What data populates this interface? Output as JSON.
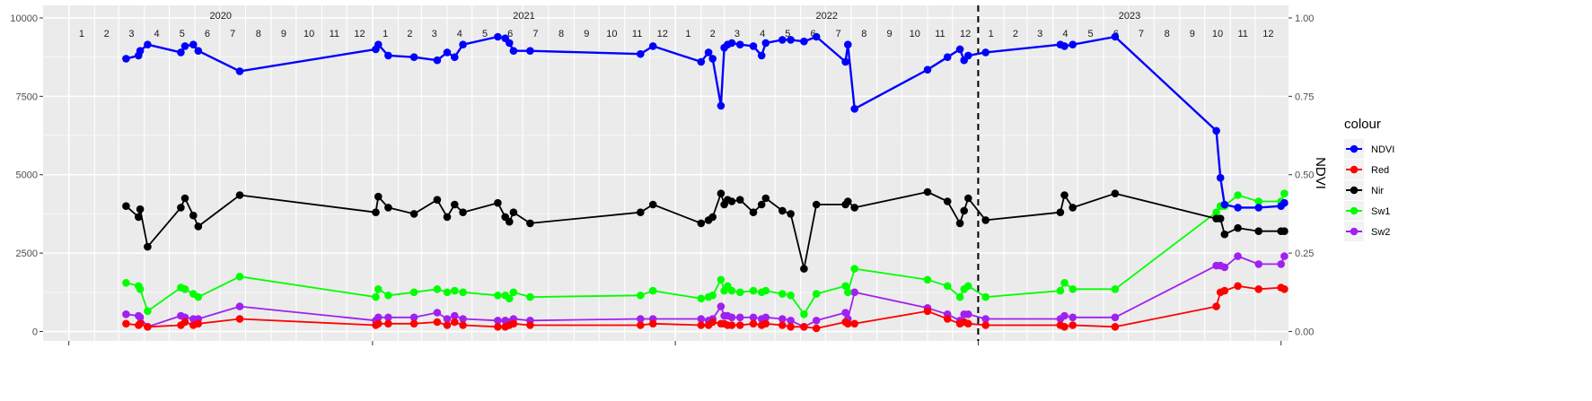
{
  "chart_data": {
    "type": "line",
    "title": "",
    "xlabel": "",
    "ylabel": "",
    "y2label": "NDVI",
    "x_range": [
      "2019-12-01",
      "2024-01-10"
    ],
    "ylim": [
      -300,
      10400
    ],
    "yticks": [
      0,
      2500,
      5000,
      7500,
      10000
    ],
    "y2ticks": [
      "0.00",
      "0.25",
      "0.50",
      "0.75",
      "1.00"
    ],
    "y2_range": [
      0,
      1
    ],
    "year_labels": [
      "2020",
      "2021",
      "2022",
      "2023"
    ],
    "month_labels": [
      "1",
      "2",
      "3",
      "4",
      "5",
      "6",
      "7",
      "8",
      "9",
      "10",
      "11",
      "12"
    ],
    "vline_date": "2023-01-01",
    "grid": true,
    "background": "#ebebeb",
    "legend": {
      "title": "colour",
      "position": "right",
      "entries": [
        "NDVI",
        "Red",
        "Nir",
        "Sw1",
        "Sw2"
      ]
    },
    "dates": [
      "2020-03-10",
      "2020-03-25",
      "2020-03-27",
      "2020-04-05",
      "2020-05-15",
      "2020-05-20",
      "2020-05-30",
      "2020-06-05",
      "2020-07-25",
      "2021-01-05",
      "2021-01-08",
      "2021-01-20",
      "2021-02-20",
      "2021-03-20",
      "2021-04-01",
      "2021-04-10",
      "2021-04-20",
      "2021-06-01",
      "2021-06-10",
      "2021-06-15",
      "2021-06-20",
      "2021-07-10",
      "2021-11-20",
      "2021-12-05",
      "2022-02-01",
      "2022-02-10",
      "2022-02-15",
      "2022-02-25",
      "2022-03-01",
      "2022-03-05",
      "2022-03-10",
      "2022-03-20",
      "2022-04-05",
      "2022-04-15",
      "2022-04-20",
      "2022-05-10",
      "2022-05-20",
      "2022-06-05",
      "2022-06-20",
      "2022-07-25",
      "2022-07-28",
      "2022-08-05",
      "2022-11-01",
      "2022-11-25",
      "2022-12-10",
      "2022-12-15",
      "2022-12-20",
      "2023-01-10",
      "2023-04-10",
      "2023-04-15",
      "2023-04-25",
      "2023-06-15",
      "2023-10-15",
      "2023-10-20",
      "2023-10-25",
      "2023-11-10",
      "2023-12-05",
      "2024-01-01",
      "2024-01-05"
    ],
    "series": [
      {
        "name": "NDVI",
        "color": "#0000ff",
        "values": [
          8700,
          8800,
          8950,
          9150,
          8900,
          9100,
          9150,
          8950,
          8300,
          9000,
          9150,
          8800,
          8750,
          8650,
          8900,
          8750,
          9150,
          9400,
          9350,
          9200,
          8950,
          8950,
          8850,
          9100,
          8600,
          8900,
          8700,
          7200,
          9050,
          9150,
          9200,
          9150,
          9100,
          8800,
          9200,
          9300,
          9300,
          9250,
          9400,
          8600,
          9150,
          7100,
          8350,
          8750,
          9000,
          8650,
          8800,
          8900,
          9150,
          9100,
          9150,
          9400,
          6400,
          4900,
          4050,
          3950,
          3950,
          4000,
          4100
        ]
      },
      {
        "name": "Red",
        "color": "#ff0000",
        "values": [
          250,
          200,
          250,
          150,
          200,
          300,
          200,
          250,
          400,
          200,
          250,
          250,
          250,
          300,
          200,
          300,
          200,
          150,
          150,
          200,
          250,
          200,
          200,
          250,
          200,
          200,
          300,
          250,
          250,
          200,
          200,
          200,
          250,
          200,
          250,
          200,
          150,
          150,
          100,
          300,
          250,
          250,
          650,
          400,
          250,
          300,
          250,
          200,
          200,
          150,
          200,
          150,
          800,
          1250,
          1300,
          1450,
          1350,
          1400,
          1350
        ]
      },
      {
        "name": "Nir",
        "color": "#000000",
        "values": [
          4000,
          3650,
          3900,
          2700,
          3950,
          4250,
          3700,
          3350,
          4350,
          3800,
          4300,
          3950,
          3750,
          4200,
          3650,
          4050,
          3800,
          4100,
          3650,
          3500,
          3800,
          3450,
          3800,
          4050,
          3450,
          3550,
          3650,
          4400,
          4050,
          4200,
          4150,
          4200,
          3800,
          4050,
          4250,
          3850,
          3750,
          2000,
          4050,
          4050,
          4150,
          3950,
          4450,
          4150,
          3450,
          3850,
          4250,
          3550,
          3800,
          4350,
          3950,
          4400,
          3600,
          3600,
          3100,
          3300,
          3200,
          3200,
          3200
        ]
      },
      {
        "name": "Sw1",
        "color": "#00ff00",
        "values": [
          1550,
          1450,
          1350,
          650,
          1400,
          1350,
          1200,
          1100,
          1750,
          1100,
          1350,
          1150,
          1250,
          1350,
          1250,
          1300,
          1250,
          1150,
          1150,
          1050,
          1250,
          1100,
          1150,
          1300,
          1050,
          1100,
          1150,
          1650,
          1300,
          1450,
          1300,
          1250,
          1300,
          1250,
          1300,
          1200,
          1150,
          550,
          1200,
          1450,
          1250,
          2000,
          1650,
          1450,
          1100,
          1350,
          1450,
          1100,
          1300,
          1550,
          1350,
          1350,
          3800,
          4000,
          4000,
          4350,
          4150,
          4150,
          4400
        ]
      },
      {
        "name": "Sw2",
        "color": "#a020f0",
        "values": [
          550,
          500,
          450,
          150,
          500,
          450,
          400,
          400,
          800,
          350,
          450,
          450,
          450,
          600,
          400,
          500,
          400,
          350,
          350,
          300,
          400,
          350,
          400,
          400,
          400,
          350,
          400,
          800,
          500,
          500,
          450,
          450,
          450,
          400,
          450,
          400,
          350,
          150,
          350,
          600,
          400,
          1250,
          750,
          550,
          350,
          550,
          550,
          400,
          400,
          500,
          450,
          450,
          2100,
          2100,
          2050,
          2400,
          2150,
          2150,
          2400
        ]
      }
    ]
  }
}
